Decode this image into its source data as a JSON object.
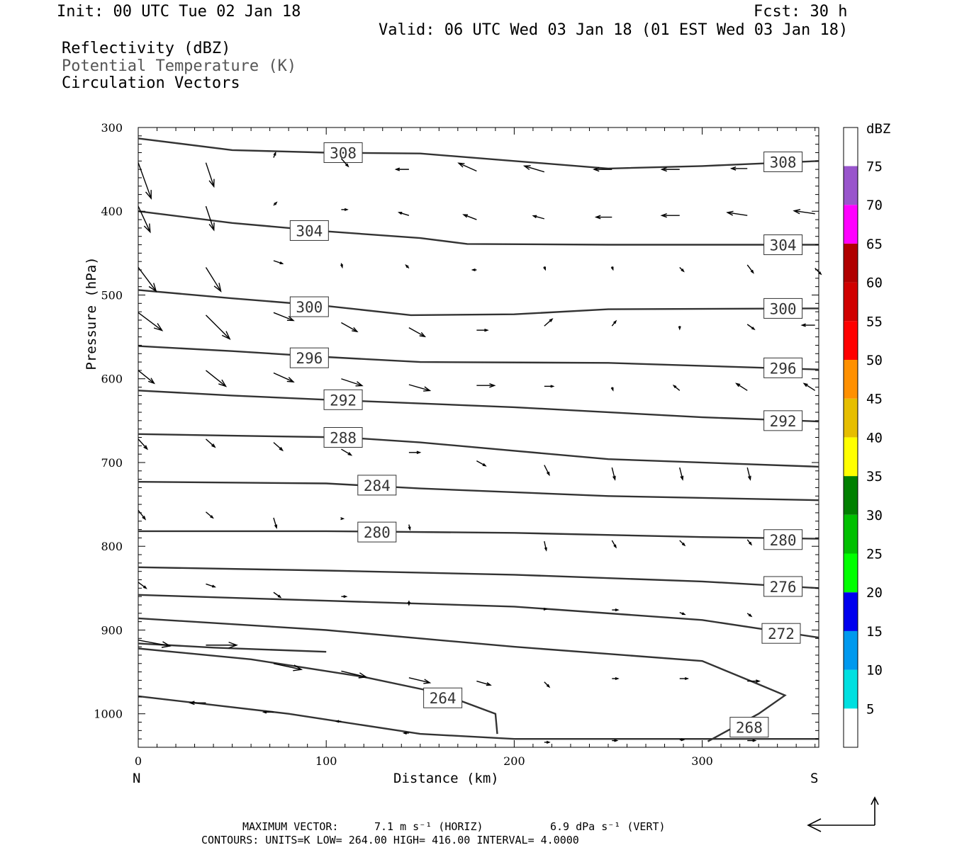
{
  "header": {
    "init": "Init: 00 UTC Tue 02 Jan 18",
    "fcst": "Fcst:   30 h",
    "valid": "Valid: 06 UTC Wed 03 Jan 18 (01 EST Wed 03 Jan 18)"
  },
  "legend_lines": [
    {
      "text": "Reflectivity (dBZ)",
      "color": "#000000"
    },
    {
      "text": "Potential Temperature (K)",
      "color": "#555555"
    },
    {
      "text": "Circulation Vectors",
      "color": "#000000"
    }
  ],
  "footer": {
    "line1_label": "MAXIMUM VECTOR:",
    "line1_horiz": "7.1 m s⁻¹ (HORIZ)",
    "line1_vert": "6.9 dPa s⁻¹ (VERT)",
    "line2": "CONTOURS:  UNITS=K  LOW=  264.00      HIGH=  416.00       INTERVAL=    4.0000"
  },
  "colorbar": {
    "unit_label": "dBZ",
    "levels": [
      "5",
      "10",
      "15",
      "20",
      "25",
      "30",
      "35",
      "40",
      "45",
      "50",
      "55",
      "60",
      "65",
      "70",
      "75"
    ],
    "colors": [
      "#00e0e0",
      "#0099ee",
      "#0000ee",
      "#00ff00",
      "#00c000",
      "#008000",
      "#ffff00",
      "#e6be00",
      "#ff9000",
      "#ff0000",
      "#d00000",
      "#b00000",
      "#ff00ff",
      "#9955cc",
      "#ffffff"
    ]
  },
  "chart_data": {
    "type": "cross-section",
    "xlabel": "Distance (km)",
    "ylabel": "Pressure (hPa)",
    "x_end_labels": {
      "left": "N",
      "right": "S"
    },
    "xlim": [
      0,
      362
    ],
    "ylim": [
      1040,
      300
    ],
    "x_ticks": [
      0,
      100,
      200,
      300
    ],
    "y_ticks": [
      300,
      400,
      500,
      600,
      700,
      800,
      900,
      1000
    ],
    "theta_contours": [
      {
        "value": 308,
        "points": [
          [
            0,
            313
          ],
          [
            50,
            327
          ],
          [
            100,
            330
          ],
          [
            150,
            331
          ],
          [
            200,
            340
          ],
          [
            250,
            349
          ],
          [
            300,
            346
          ],
          [
            362,
            340
          ]
        ],
        "labels": [
          {
            "x": 109,
            "p": 330
          },
          {
            "x": 343,
            "p": 341
          }
        ]
      },
      {
        "value": 304,
        "points": [
          [
            0,
            400
          ],
          [
            50,
            414
          ],
          [
            100,
            424
          ],
          [
            150,
            432
          ],
          [
            175,
            439
          ],
          [
            250,
            440
          ],
          [
            362,
            440
          ]
        ],
        "labels": [
          {
            "x": 91,
            "p": 423
          },
          {
            "x": 343,
            "p": 440
          }
        ]
      },
      {
        "value": 300,
        "points": [
          [
            0,
            494
          ],
          [
            50,
            504
          ],
          [
            100,
            513
          ],
          [
            145,
            524
          ],
          [
            200,
            523
          ],
          [
            250,
            517
          ],
          [
            362,
            516
          ]
        ],
        "labels": [
          {
            "x": 91,
            "p": 514
          },
          {
            "x": 343,
            "p": 516
          }
        ]
      },
      {
        "value": 296,
        "points": [
          [
            0,
            561
          ],
          [
            50,
            567
          ],
          [
            100,
            574
          ],
          [
            150,
            580
          ],
          [
            250,
            581
          ],
          [
            362,
            589
          ]
        ],
        "labels": [
          {
            "x": 91,
            "p": 575
          },
          {
            "x": 343,
            "p": 587
          }
        ]
      },
      {
        "value": 292,
        "points": [
          [
            0,
            614
          ],
          [
            50,
            620
          ],
          [
            100,
            625
          ],
          [
            200,
            634
          ],
          [
            300,
            646
          ],
          [
            362,
            651
          ]
        ],
        "labels": [
          {
            "x": 109,
            "p": 625
          },
          {
            "x": 343,
            "p": 650
          }
        ]
      },
      {
        "value": 288,
        "points": [
          [
            0,
            666
          ],
          [
            50,
            668
          ],
          [
            110,
            670
          ],
          [
            150,
            676
          ],
          [
            250,
            696
          ],
          [
            362,
            705
          ]
        ],
        "labels": [
          {
            "x": 109,
            "p": 670
          },
          {
            "x": null,
            "p": null
          }
        ]
      },
      {
        "value": 284,
        "points": [
          [
            0,
            723
          ],
          [
            100,
            725
          ],
          [
            150,
            731
          ],
          [
            250,
            740
          ],
          [
            362,
            745
          ]
        ],
        "labels": [
          {
            "x": 127,
            "p": 727
          }
        ]
      },
      {
        "value": 280,
        "points": [
          [
            0,
            782
          ],
          [
            100,
            782
          ],
          [
            200,
            784
          ],
          [
            300,
            789
          ],
          [
            362,
            791
          ]
        ],
        "labels": [
          {
            "x": 127,
            "p": 783
          },
          {
            "x": 343,
            "p": 792
          }
        ]
      },
      {
        "value": 276,
        "points": [
          [
            0,
            825
          ],
          [
            100,
            829
          ],
          [
            200,
            834
          ],
          [
            300,
            842
          ],
          [
            362,
            850
          ]
        ],
        "labels": [
          {
            "x": 343,
            "p": 848
          }
        ]
      },
      {
        "value": 272,
        "points": [
          [
            0,
            858
          ],
          [
            100,
            865
          ],
          [
            200,
            872
          ],
          [
            300,
            888
          ],
          [
            362,
            909
          ]
        ],
        "labels": [
          {
            "x": 342,
            "p": 904
          }
        ]
      },
      {
        "value": 268,
        "points": [
          [
            0,
            886
          ],
          [
            100,
            900
          ],
          [
            200,
            920
          ],
          [
            300,
            937
          ],
          [
            326,
            961
          ],
          [
            344,
            978
          ],
          [
            330,
            1000
          ],
          [
            303,
            1033
          ]
        ],
        "labels": [
          {
            "x": 325,
            "p": 1016
          }
        ]
      },
      {
        "value": 264,
        "points": [
          [
            0,
            922
          ],
          [
            60,
            935
          ],
          [
            120,
            956
          ],
          [
            160,
            975
          ],
          [
            190,
            1000
          ],
          [
            191,
            1024
          ]
        ],
        "labels": [
          {
            "x": 162,
            "p": 981
          }
        ]
      },
      {
        "value": 264,
        "points": [
          [
            0,
            916
          ],
          [
            40,
            921
          ],
          [
            100,
            926
          ]
        ],
        "labels": []
      },
      {
        "value": 268,
        "points": [
          [
            0,
            979
          ],
          [
            80,
            1000
          ],
          [
            150,
            1024
          ],
          [
            200,
            1030
          ],
          [
            362,
            1030
          ]
        ],
        "labels": []
      }
    ],
    "vectors": [
      {
        "x": 0,
        "p": 342,
        "u": 1.3,
        "w": -3.6
      },
      {
        "x": 36,
        "p": 342,
        "u": 0.8,
        "w": -2.4
      },
      {
        "x": 72,
        "p": 336,
        "u": 0.2,
        "w": 0.5
      },
      {
        "x": 108,
        "p": 337,
        "u": 0.7,
        "w": -0.8
      },
      {
        "x": 144,
        "p": 350,
        "u": -1.3,
        "w": 0.0
      },
      {
        "x": 180,
        "p": 352,
        "u": -1.8,
        "w": 0.8
      },
      {
        "x": 216,
        "p": 353,
        "u": -2.0,
        "w": 0.6
      },
      {
        "x": 252,
        "p": 350,
        "u": -1.8,
        "w": 0.0
      },
      {
        "x": 288,
        "p": 350,
        "u": -1.8,
        "w": 0.0
      },
      {
        "x": 324,
        "p": 349,
        "u": -1.6,
        "w": 0.0
      },
      {
        "x": 0,
        "p": 394,
        "u": 1.2,
        "w": -2.6
      },
      {
        "x": 36,
        "p": 394,
        "u": 0.8,
        "w": -2.4
      },
      {
        "x": 72,
        "p": 393,
        "u": 0.3,
        "w": 0.3
      },
      {
        "x": 108,
        "p": 398,
        "u": 0.6,
        "w": 0.0
      },
      {
        "x": 144,
        "p": 405,
        "u": -1.0,
        "w": 0.3
      },
      {
        "x": 180,
        "p": 410,
        "u": -1.3,
        "w": 0.5
      },
      {
        "x": 216,
        "p": 409,
        "u": -1.1,
        "w": 0.3
      },
      {
        "x": 252,
        "p": 407,
        "u": -1.6,
        "w": 0.0
      },
      {
        "x": 288,
        "p": 405,
        "u": -1.8,
        "w": 0.0
      },
      {
        "x": 324,
        "p": 405,
        "u": -2.0,
        "w": 0.3
      },
      {
        "x": 360,
        "p": 403,
        "u": -2.1,
        "w": 0.3
      },
      {
        "x": 0,
        "p": 467,
        "u": 1.8,
        "w": -2.4
      },
      {
        "x": 36,
        "p": 467,
        "u": 1.5,
        "w": -2.4
      },
      {
        "x": 72,
        "p": 459,
        "u": 0.9,
        "w": -0.3
      },
      {
        "x": 108,
        "p": 462,
        "u": 0.1,
        "w": -0.4
      },
      {
        "x": 144,
        "p": 468,
        "u": -0.3,
        "w": 0.3
      },
      {
        "x": 180,
        "p": 470,
        "u": -0.4,
        "w": 0.0
      },
      {
        "x": 216,
        "p": 466,
        "u": 0.1,
        "w": -0.3
      },
      {
        "x": 252,
        "p": 466,
        "u": 0.1,
        "w": -0.3
      },
      {
        "x": 288,
        "p": 467,
        "u": 0.4,
        "w": -0.4
      },
      {
        "x": 324,
        "p": 464,
        "u": 0.6,
        "w": -0.8
      },
      {
        "x": 360,
        "p": 468,
        "u": 0.6,
        "w": -0.6
      },
      {
        "x": 0,
        "p": 521,
        "u": 2.4,
        "w": -1.8
      },
      {
        "x": 36,
        "p": 524,
        "u": 2.4,
        "w": -2.4
      },
      {
        "x": 72,
        "p": 521,
        "u": 2.0,
        "w": -0.8
      },
      {
        "x": 108,
        "p": 533,
        "u": 1.6,
        "w": -0.9
      },
      {
        "x": 144,
        "p": 539,
        "u": 1.6,
        "w": -0.9
      },
      {
        "x": 180,
        "p": 542,
        "u": 1.1,
        "w": 0.0
      },
      {
        "x": 216,
        "p": 537,
        "u": 0.8,
        "w": 0.7
      },
      {
        "x": 252,
        "p": 537,
        "u": 0.4,
        "w": 0.5
      },
      {
        "x": 288,
        "p": 537,
        "u": 0.0,
        "w": -0.3
      },
      {
        "x": 324,
        "p": 535,
        "u": 0.7,
        "w": -0.5
      },
      {
        "x": 360,
        "p": 536,
        "u": -1.3,
        "w": 0.0
      },
      {
        "x": 0,
        "p": 590,
        "u": 1.6,
        "w": -1.3
      },
      {
        "x": 36,
        "p": 590,
        "u": 2.0,
        "w": -1.6
      },
      {
        "x": 72,
        "p": 593,
        "u": 2.0,
        "w": -0.9
      },
      {
        "x": 108,
        "p": 600,
        "u": 2.1,
        "w": -0.7
      },
      {
        "x": 144,
        "p": 607,
        "u": 2.1,
        "w": -0.6
      },
      {
        "x": 180,
        "p": 608,
        "u": 1.8,
        "w": 0.0
      },
      {
        "x": 216,
        "p": 609,
        "u": 0.9,
        "w": 0.0
      },
      {
        "x": 252,
        "p": 610,
        "u": 0.1,
        "w": -0.3
      },
      {
        "x": 288,
        "p": 614,
        "u": -0.6,
        "w": 0.5
      },
      {
        "x": 324,
        "p": 614,
        "u": -1.1,
        "w": 0.7
      },
      {
        "x": 360,
        "p": 614,
        "u": -1.1,
        "w": 0.7
      },
      {
        "x": 0,
        "p": 672,
        "u": 0.9,
        "w": -1.0
      },
      {
        "x": 36,
        "p": 672,
        "u": 0.9,
        "w": -0.8
      },
      {
        "x": 72,
        "p": 676,
        "u": 0.9,
        "w": -0.8
      },
      {
        "x": 108,
        "p": 684,
        "u": 1.0,
        "w": -0.6
      },
      {
        "x": 144,
        "p": 688,
        "u": 1.1,
        "w": 0.0
      },
      {
        "x": 180,
        "p": 698,
        "u": 0.9,
        "w": -0.5
      },
      {
        "x": 216,
        "p": 703,
        "u": 0.5,
        "w": -1.0
      },
      {
        "x": 252,
        "p": 706,
        "u": 0.3,
        "w": -1.2
      },
      {
        "x": 288,
        "p": 706,
        "u": 0.3,
        "w": -1.2
      },
      {
        "x": 324,
        "p": 706,
        "u": 0.3,
        "w": -1.2
      },
      {
        "x": 0,
        "p": 757,
        "u": 0.7,
        "w": -0.9
      },
      {
        "x": 36,
        "p": 759,
        "u": 0.7,
        "w": -0.6
      },
      {
        "x": 72,
        "p": 766,
        "u": 0.3,
        "w": -1.0
      },
      {
        "x": 108,
        "p": 767,
        "u": 0.2,
        "w": 0.0
      },
      {
        "x": 144,
        "p": 774,
        "u": 0.1,
        "w": -0.5
      },
      {
        "x": 180,
        "p": 786,
        "u": 0.0,
        "w": 0.0
      },
      {
        "x": 216,
        "p": 794,
        "u": 0.2,
        "w": -0.9
      },
      {
        "x": 252,
        "p": 793,
        "u": 0.4,
        "w": -0.7
      },
      {
        "x": 288,
        "p": 793,
        "u": 0.5,
        "w": -0.5
      },
      {
        "x": 324,
        "p": 792,
        "u": 0.4,
        "w": -0.5
      },
      {
        "x": 0,
        "p": 843,
        "u": 0.8,
        "w": -0.6
      },
      {
        "x": 36,
        "p": 845,
        "u": 0.9,
        "w": -0.3
      },
      {
        "x": 72,
        "p": 855,
        "u": 0.7,
        "w": -0.5
      },
      {
        "x": 108,
        "p": 860,
        "u": 0.5,
        "w": 0.0
      },
      {
        "x": 144,
        "p": 865,
        "u": 0.0,
        "w": -0.4
      },
      {
        "x": 180,
        "p": 870,
        "u": 0.0,
        "w": 0.0
      },
      {
        "x": 216,
        "p": 875,
        "u": 0.2,
        "w": 0.0
      },
      {
        "x": 252,
        "p": 876,
        "u": 0.6,
        "w": 0.0
      },
      {
        "x": 288,
        "p": 879,
        "u": 0.5,
        "w": -0.2
      },
      {
        "x": 324,
        "p": 880,
        "u": 0.4,
        "w": -0.3
      },
      {
        "x": 0,
        "p": 912,
        "u": 3.2,
        "w": -0.6
      },
      {
        "x": 36,
        "p": 918,
        "u": 3.1,
        "w": 0.0
      },
      {
        "x": 72,
        "p": 940,
        "u": 2.8,
        "w": -0.6
      },
      {
        "x": 108,
        "p": 949,
        "u": 2.5,
        "w": -0.6
      },
      {
        "x": 144,
        "p": 957,
        "u": 2.1,
        "w": -0.5
      },
      {
        "x": 180,
        "p": 961,
        "u": 1.4,
        "w": -0.4
      },
      {
        "x": 216,
        "p": 962,
        "u": 0.5,
        "w": -0.5
      },
      {
        "x": 252,
        "p": 958,
        "u": 0.6,
        "w": 0.0
      },
      {
        "x": 288,
        "p": 958,
        "u": 0.8,
        "w": 0.0
      },
      {
        "x": 324,
        "p": 961,
        "u": 1.2,
        "w": 0.0
      },
      {
        "x": 36,
        "p": 987,
        "u": -1.6,
        "w": 0.0
      },
      {
        "x": 72,
        "p": 998,
        "u": -1.0,
        "w": 0.0
      },
      {
        "x": 108,
        "p": 1009,
        "u": -0.5,
        "w": 0.0
      },
      {
        "x": 144,
        "p": 1023,
        "u": -0.5,
        "w": 0.0
      },
      {
        "x": 216,
        "p": 1034,
        "u": 0.5,
        "w": 0.0
      },
      {
        "x": 252,
        "p": 1032,
        "u": 0.5,
        "w": 0.0
      },
      {
        "x": 288,
        "p": 1031,
        "u": 0.4,
        "w": 0.0
      },
      {
        "x": 324,
        "p": 1032,
        "u": 0.8,
        "w": 0.0
      }
    ]
  }
}
